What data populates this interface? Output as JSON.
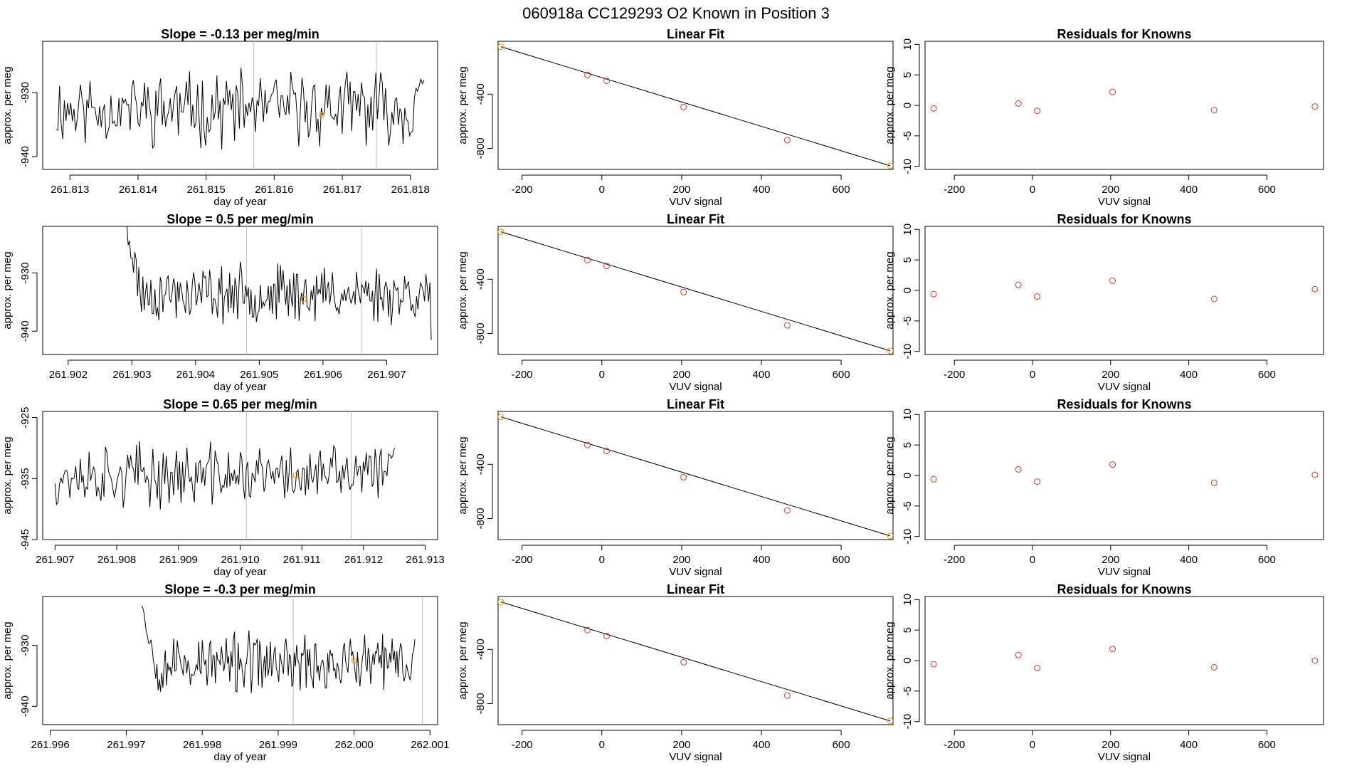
{
  "figure": {
    "title": "060918a      CC129293   O2 Known in Position  3"
  },
  "colors": {
    "trace": "#000000",
    "marker": "#ff8c00",
    "points": "#cd3c2e",
    "fit": "#000000",
    "grid_vline": "#bdbdbd"
  },
  "chart_data": [
    {
      "type": "line",
      "panel": "timeseries",
      "row": 0,
      "title": "Slope =  -0.13  per meg/min",
      "xlabel": "day of year",
      "ylabel": "approx. per meg",
      "xlim": [
        261.8126,
        261.8184
      ],
      "ylim": [
        -942,
        -922
      ],
      "xticks": [
        261.813,
        261.814,
        261.815,
        261.816,
        261.817,
        261.818
      ],
      "xtick_labels": [
        "261.813",
        "261.814",
        "261.815",
        "261.816",
        "261.817",
        "261.818"
      ],
      "yticks": [
        -930,
        -940
      ],
      "ytick_labels": [
        "-930",
        "-940"
      ],
      "vlines": [
        261.8157,
        261.8175
      ],
      "marker_point": [
        261.8167,
        -933.5
      ],
      "trace_start": 261.8128,
      "trace_end": 261.8182,
      "trace_center": -932.5,
      "trace_amp": 4.2,
      "trace_tail_to": -922,
      "seed": 11
    },
    {
      "type": "scatter",
      "panel": "fit",
      "row": 0,
      "title": "Linear Fit",
      "xlabel": "VUV signal",
      "ylabel": "approx. per meg",
      "xlim": [
        -260,
        730
      ],
      "ylim": [
        -955,
        -10
      ],
      "xticks": [
        -200,
        0,
        200,
        400,
        600
      ],
      "xtick_labels": [
        "-200",
        "0",
        "200",
        "400",
        "600"
      ],
      "yticks": [
        -400,
        -800
      ],
      "ytick_labels": [
        "-400",
        "-800"
      ],
      "x": [
        -253,
        -36,
        12,
        205,
        465,
        723
      ],
      "y": [
        -50,
        -258,
        -302,
        -495,
        -740,
        -928
      ],
      "highlight_first_last": true
    },
    {
      "type": "scatter",
      "panel": "residuals",
      "row": 0,
      "title": "Residuals for Knowns",
      "xlabel": "VUV signal",
      "ylabel": "approx. per meg",
      "xlim": [
        -275,
        745
      ],
      "ylim": [
        -10.5,
        10.5
      ],
      "xticks": [
        -200,
        0,
        200,
        400,
        600
      ],
      "xtick_labels": [
        "-200",
        "0",
        "200",
        "400",
        "600"
      ],
      "yticks": [
        10,
        5,
        0,
        -5,
        -10
      ],
      "ytick_labels": [
        "10",
        "5",
        "0",
        "-5",
        "-10"
      ],
      "x": [
        -253,
        -36,
        12,
        205,
        465,
        723
      ],
      "y": [
        -0.5,
        0.3,
        -0.9,
        2.2,
        -0.8,
        -0.2
      ]
    },
    {
      "type": "line",
      "panel": "timeseries",
      "row": 1,
      "title": "Slope =  0.5  per meg/min",
      "xlabel": "day of year",
      "ylabel": "approx. per meg",
      "xlim": [
        261.9016,
        261.9078
      ],
      "ylim": [
        -944,
        -922
      ],
      "xticks": [
        261.902,
        261.903,
        261.904,
        261.905,
        261.906,
        261.907
      ],
      "xtick_labels": [
        "261.902",
        "261.903",
        "261.904",
        "261.905",
        "261.906",
        "261.907"
      ],
      "yticks": [
        -930,
        -940
      ],
      "ytick_labels": [
        "-930",
        "-940"
      ],
      "vlines": [
        261.9048,
        261.9066
      ],
      "marker_point": [
        261.9057,
        -934.5
      ],
      "trace_start": 261.9029,
      "trace_end": 261.9077,
      "trace_center": -933.5,
      "trace_amp": 3.6,
      "trace_head_from": -922,
      "trace_end_value": -941.5,
      "seed": 23
    },
    {
      "type": "scatter",
      "panel": "fit",
      "row": 1,
      "title": "Linear Fit",
      "xlabel": "VUV signal",
      "ylabel": "approx. per meg",
      "xlim": [
        -260,
        730
      ],
      "ylim": [
        -955,
        -10
      ],
      "xticks": [
        -200,
        0,
        200,
        400,
        600
      ],
      "xtick_labels": [
        "-200",
        "0",
        "200",
        "400",
        "600"
      ],
      "yticks": [
        -400,
        -800
      ],
      "ytick_labels": [
        "-400",
        "-800"
      ],
      "x": [
        -253,
        -36,
        12,
        205,
        465,
        723
      ],
      "y": [
        -50,
        -258,
        -302,
        -495,
        -740,
        -928
      ],
      "highlight_first_last": true
    },
    {
      "type": "scatter",
      "panel": "residuals",
      "row": 1,
      "title": "Residuals for Knowns",
      "xlabel": "VUV signal",
      "ylabel": "approx. per meg",
      "xlim": [
        -275,
        745
      ],
      "ylim": [
        -10.5,
        10.5
      ],
      "xticks": [
        -200,
        0,
        200,
        400,
        600
      ],
      "xtick_labels": [
        "-200",
        "0",
        "200",
        "400",
        "600"
      ],
      "yticks": [
        10,
        5,
        0,
        -5,
        -10
      ],
      "ytick_labels": [
        "10",
        "5",
        "0",
        "-5",
        "-10"
      ],
      "x": [
        -253,
        -36,
        12,
        205,
        465,
        723
      ],
      "y": [
        -0.6,
        0.9,
        -1.0,
        1.6,
        -1.4,
        0.2
      ]
    },
    {
      "type": "line",
      "panel": "timeseries",
      "row": 2,
      "title": "Slope =  0.65  per meg/min",
      "xlabel": "day of year",
      "ylabel": "approx. per meg",
      "xlim": [
        261.9068,
        261.9132
      ],
      "ylim": [
        -945,
        -924
      ],
      "xticks": [
        261.907,
        261.908,
        261.909,
        261.91,
        261.911,
        261.912,
        261.913
      ],
      "xtick_labels": [
        "261.907",
        "261.908",
        "261.909",
        "261.910",
        "261.911",
        "261.912",
        "261.913"
      ],
      "yticks": [
        -925,
        -935,
        -945
      ],
      "ytick_labels": [
        "-925",
        "-935",
        "-945"
      ],
      "vlines": [
        261.9101,
        261.9118
      ],
      "marker_point": [
        261.9109,
        -934.5
      ],
      "trace_start": 261.907,
      "trace_end": 261.9125,
      "trace_center": -934.5,
      "trace_amp": 3.8,
      "trace_tail_to": -924,
      "seed": 37
    },
    {
      "type": "scatter",
      "panel": "fit",
      "row": 2,
      "title": "Linear Fit",
      "xlabel": "VUV signal",
      "ylabel": "approx. per meg",
      "xlim": [
        -260,
        730
      ],
      "ylim": [
        -955,
        -10
      ],
      "xticks": [
        -200,
        0,
        200,
        400,
        600
      ],
      "xtick_labels": [
        "-200",
        "0",
        "200",
        "400",
        "600"
      ],
      "yticks": [
        -400,
        -800
      ],
      "ytick_labels": [
        "-400",
        "-800"
      ],
      "x": [
        -253,
        -36,
        12,
        205,
        465,
        723
      ],
      "y": [
        -50,
        -258,
        -302,
        -495,
        -740,
        -928
      ],
      "highlight_first_last": true
    },
    {
      "type": "scatter",
      "panel": "residuals",
      "row": 2,
      "title": "Residuals for Knowns",
      "xlabel": "VUV signal",
      "ylabel": "approx. per meg",
      "xlim": [
        -275,
        745
      ],
      "ylim": [
        -10.5,
        10.5
      ],
      "xticks": [
        -200,
        0,
        200,
        400,
        600
      ],
      "xtick_labels": [
        "-200",
        "0",
        "200",
        "400",
        "600"
      ],
      "yticks": [
        10,
        5,
        0,
        -5,
        -10
      ],
      "ytick_labels": [
        "10",
        "5",
        "0",
        "-5",
        "-10"
      ],
      "x": [
        -253,
        -36,
        12,
        205,
        465,
        723
      ],
      "y": [
        -0.6,
        1.0,
        -1.0,
        1.8,
        -1.2,
        0.1
      ]
    },
    {
      "type": "line",
      "panel": "timeseries",
      "row": 3,
      "title": "Slope =  -0.3  per meg/min",
      "xlabel": "day of year",
      "ylabel": "approx. per meg",
      "xlim": [
        261.9959,
        262.0011
      ],
      "ylim": [
        -943,
        -922
      ],
      "xticks": [
        261.996,
        261.997,
        261.998,
        261.999,
        262.0,
        262.001
      ],
      "xtick_labels": [
        "261.996",
        "261.997",
        "261.998",
        "261.999",
        "262.000",
        "262.001"
      ],
      "yticks": [
        -930,
        -940
      ],
      "ytick_labels": [
        "-930",
        "-940"
      ],
      "vlines": [
        261.9992,
        262.0009
      ],
      "marker_point": [
        262.0,
        -932.5
      ],
      "trace_start": 261.9972,
      "trace_end": 262.0008,
      "trace_center": -933.0,
      "trace_amp": 3.6,
      "trace_head_from": -922,
      "trace_end_value": -929,
      "seed": 53
    },
    {
      "type": "scatter",
      "panel": "fit",
      "row": 3,
      "title": "Linear Fit",
      "xlabel": "VUV signal",
      "ylabel": "approx. per meg",
      "xlim": [
        -260,
        730
      ],
      "ylim": [
        -955,
        -10
      ],
      "xticks": [
        -200,
        0,
        200,
        400,
        600
      ],
      "xtick_labels": [
        "-200",
        "0",
        "200",
        "400",
        "600"
      ],
      "yticks": [
        -400,
        -800
      ],
      "ytick_labels": [
        "-400",
        "-800"
      ],
      "x": [
        -253,
        -36,
        12,
        205,
        465,
        723
      ],
      "y": [
        -50,
        -258,
        -302,
        -495,
        -740,
        -928
      ],
      "highlight_first_last": true
    },
    {
      "type": "scatter",
      "panel": "residuals",
      "row": 3,
      "title": "Residuals for Knowns",
      "xlabel": "VUV signal",
      "ylabel": "approx. per meg",
      "xlim": [
        -275,
        745
      ],
      "ylim": [
        -10.5,
        10.5
      ],
      "xticks": [
        -200,
        0,
        200,
        400,
        600
      ],
      "xtick_labels": [
        "-200",
        "0",
        "200",
        "400",
        "600"
      ],
      "yticks": [
        10,
        5,
        0,
        -5,
        -10
      ],
      "ytick_labels": [
        "10",
        "5",
        "0",
        "-5",
        "-10"
      ],
      "x": [
        -253,
        -36,
        12,
        205,
        465,
        723
      ],
      "y": [
        -0.6,
        0.9,
        -1.2,
        1.9,
        -1.1,
        0.0
      ]
    }
  ]
}
